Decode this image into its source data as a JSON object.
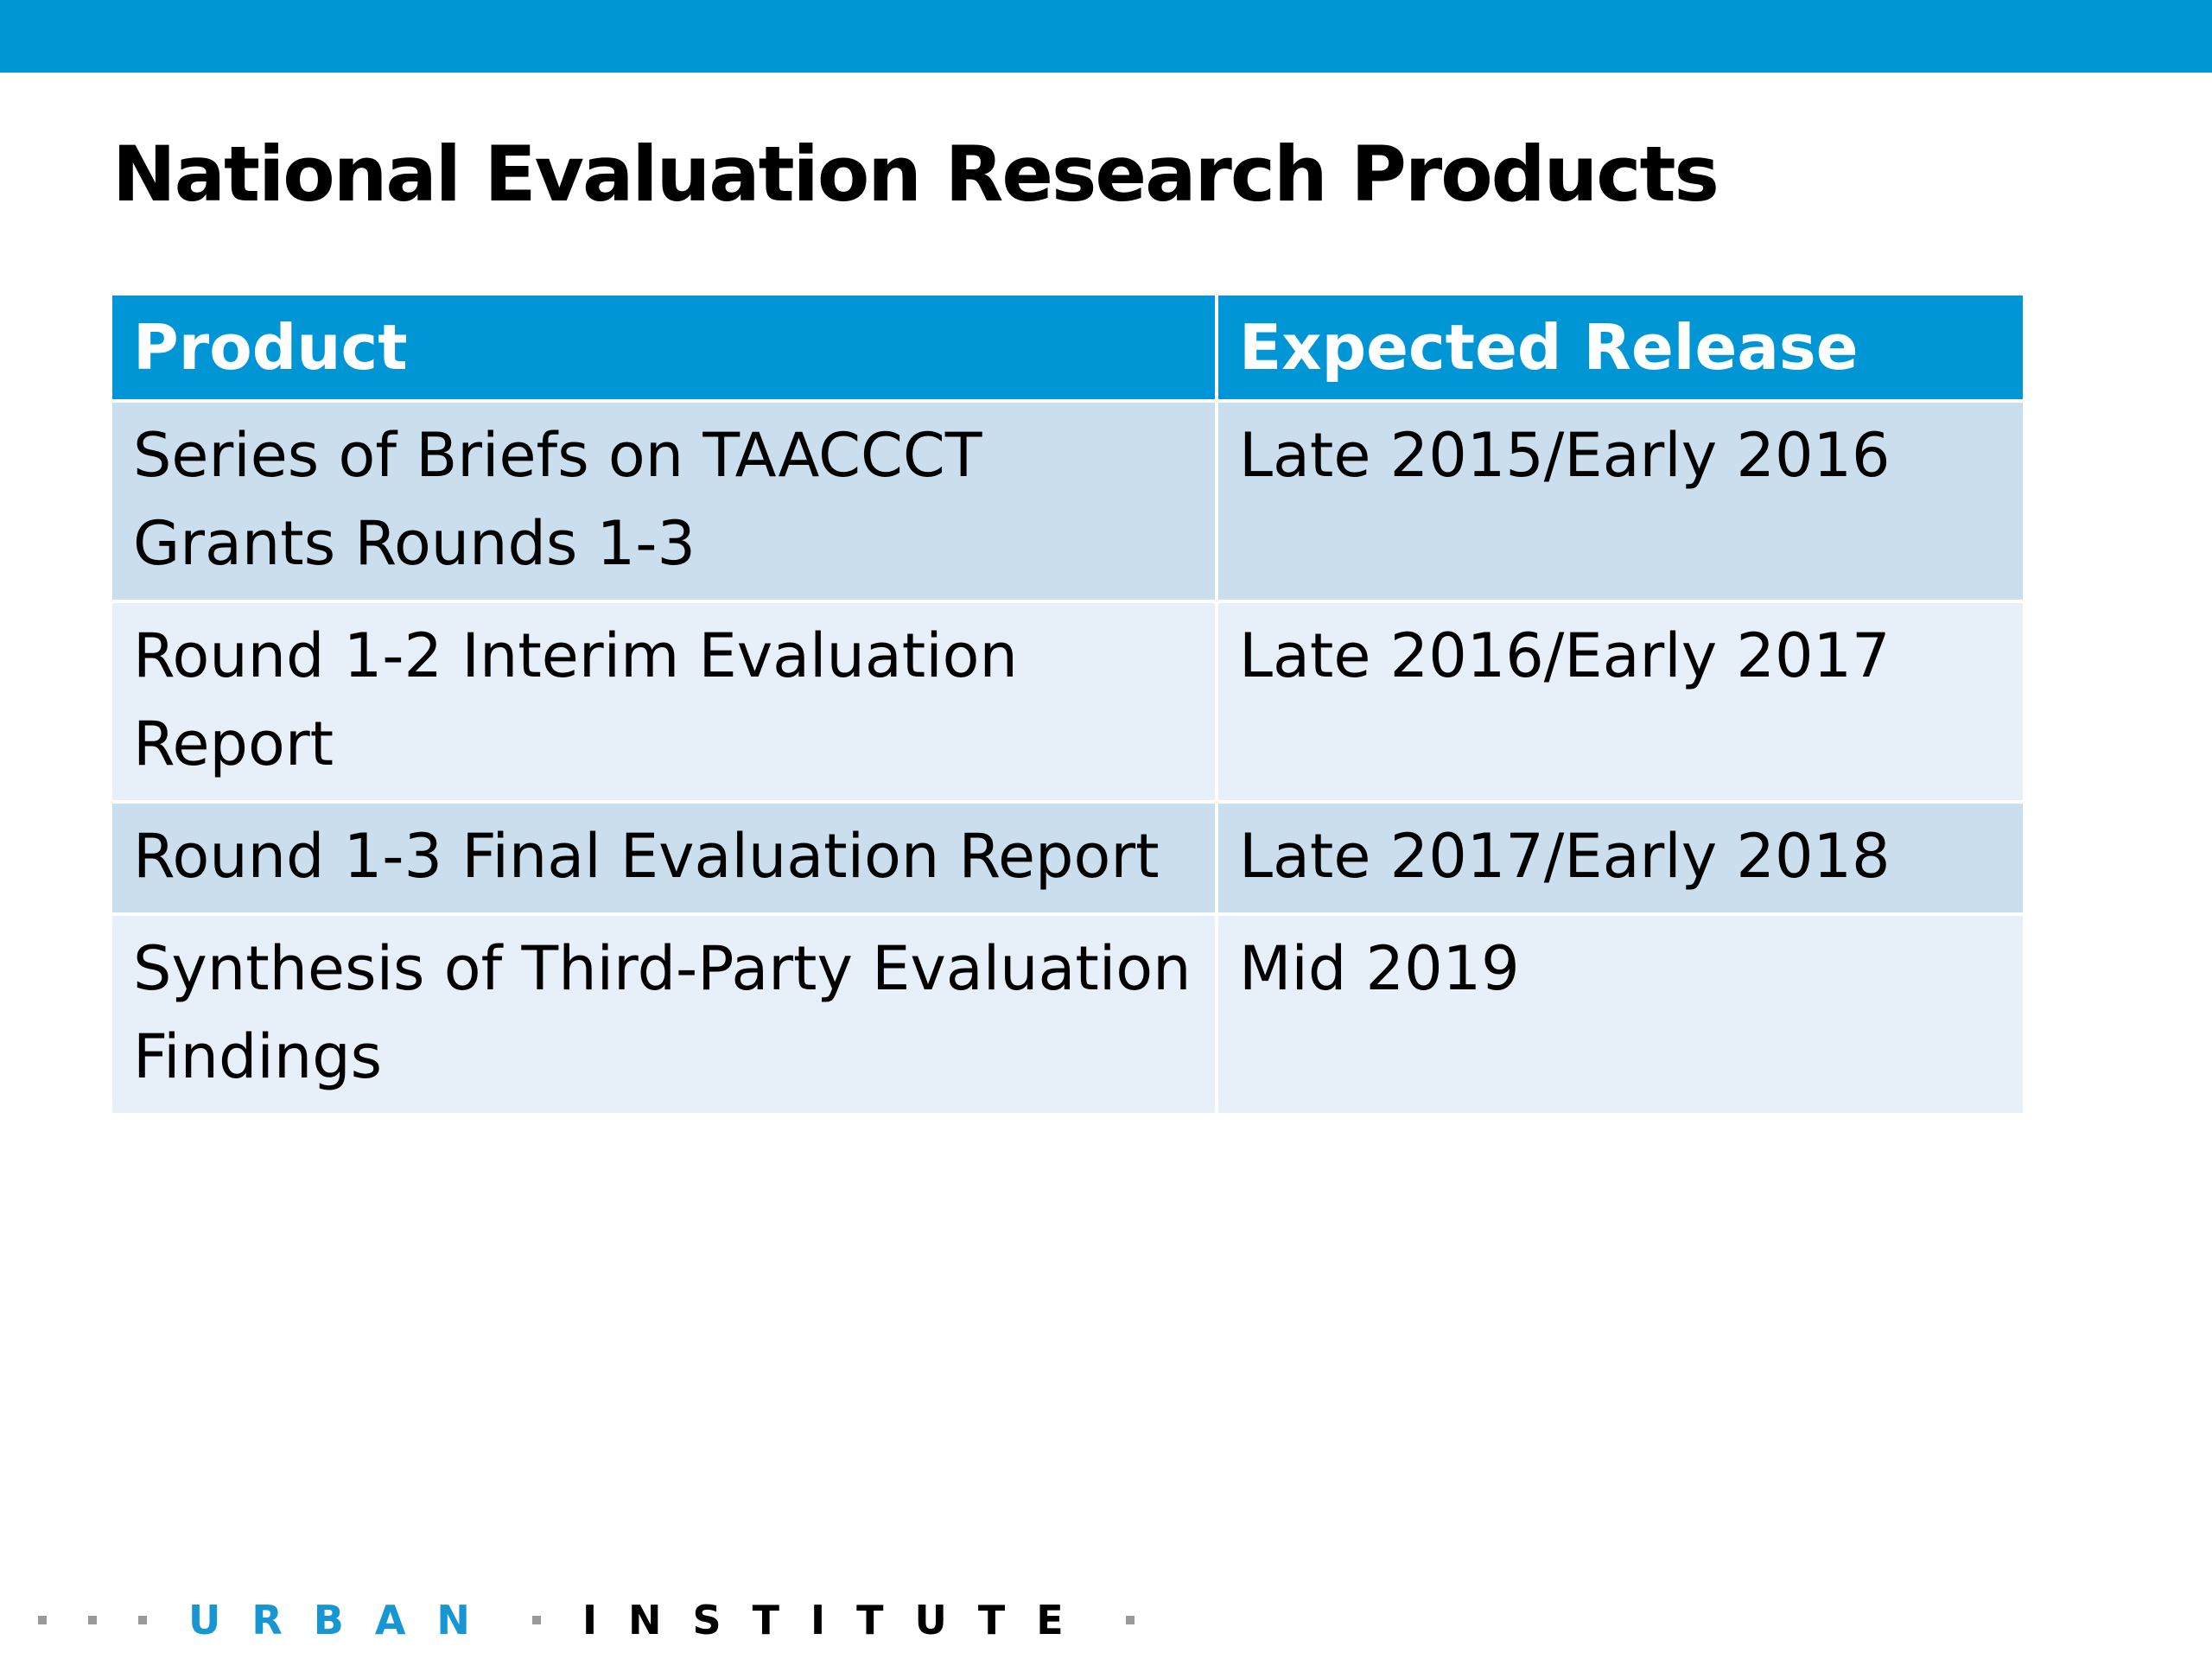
{
  "slide": {
    "title": "National Evaluation Research Products"
  },
  "table": {
    "headers": [
      "Product",
      "Expected Release"
    ],
    "rows": [
      {
        "product": "Series of Briefs on TAACCCT Grants Rounds 1-3",
        "release": "Late 2015/Early 2016"
      },
      {
        "product": "Round 1-2 Interim Evaluation Report",
        "release": "Late 2016/Early 2017"
      },
      {
        "product": "Round 1-3 Final Evaluation Report",
        "release": "Late 2017/Early 2018"
      },
      {
        "product": "Synthesis of Third-Party Evaluation Findings",
        "release": "Mid 2019"
      }
    ]
  },
  "footer": {
    "logo_word1": "URBAN",
    "logo_word2": "INSTITUTE"
  },
  "colors": {
    "brand_blue": "#0096d6",
    "row_dark": "#cbdeed",
    "row_light": "#e7eff8"
  }
}
